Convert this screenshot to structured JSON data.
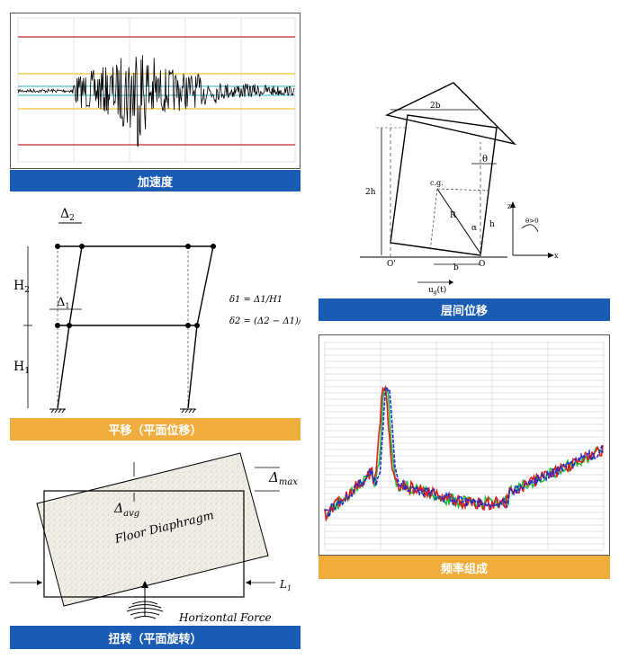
{
  "captions": {
    "acceleration": "加速度",
    "translation": "平移（平面位移）",
    "torsion": "扭转（平面旋转）",
    "drift": "层间位移",
    "frequency": "频率组成"
  },
  "translation": {
    "delta2": "Δ",
    "delta2_sub": "2",
    "delta1": "Δ",
    "delta1_sub": "1",
    "h2": "H",
    "h2_sub": "2",
    "h1": "H",
    "h1_sub": "1",
    "eq1": "δ1 = Δ1/H1",
    "eq2": "δ2 = (Δ2 − Δ1)/H2"
  },
  "torsion": {
    "dmax": "Δ",
    "dmax_sub": "max",
    "davg": "Δ",
    "davg_sub": "avg",
    "diaphragm": "Floor Diaphragm",
    "force": "Horizontal Force",
    "l1": "L",
    "l1_sub": "1"
  },
  "drift": {
    "label_2b": "2b",
    "label_2h": "2h",
    "label_theta": "θ",
    "label_cg": "c.g.",
    "label_r": "R",
    "label_alpha": "α",
    "label_h": "h",
    "label_b": "b",
    "label_o": "O",
    "label_oprime": "O'",
    "label_ug": "u",
    "label_ug_sub": "g",
    "label_ug_tail": "(t)",
    "axis_z": "z",
    "axis_x": "x",
    "theta_gt0": "θ>0"
  },
  "colors": {
    "caption_blue": "#1a5bb5",
    "caption_orange": "#f0ad3e",
    "red_line": "#c62828",
    "yellow_line": "#f2c230",
    "cyan_line": "#4fc3d9",
    "series_blue": "#1e2ccf",
    "series_red": "#e01b1b",
    "series_green": "#1fbf3a"
  }
}
